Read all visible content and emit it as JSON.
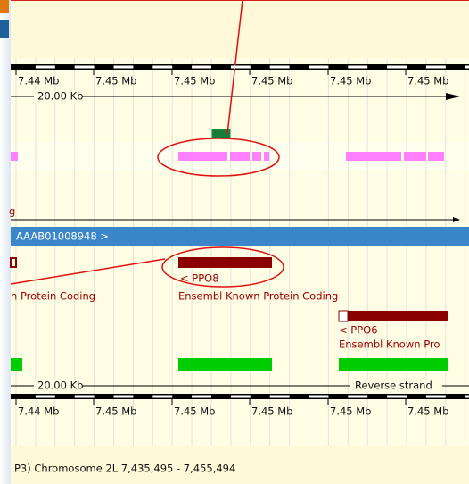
{
  "top_ruler": {
    "labels": [
      "7.44 Mb",
      "7.45 Mb",
      "7.45 Mb",
      "7.45 Mb",
      "7.45 Mb",
      "7.45 Mb"
    ],
    "scale": "20.00 Kb"
  },
  "forward_tracks": {
    "cut_label": "g"
  },
  "contig": {
    "label": "AAAB01008948 >"
  },
  "genes": [
    {
      "name": "< PPO8",
      "source": "Ensembl Known Protein Coding"
    },
    {
      "name": "< PPO6",
      "source": "Ensembl Known Pro"
    }
  ],
  "left_cut_label": "n Protein Coding",
  "bottom_ruler": {
    "scale": "20.00 Kb",
    "strand": "Reverse strand",
    "labels": [
      "7.44 Mb",
      "7.45 Mb",
      "7.45 Mb",
      "7.45 Mb",
      "7.45 Mb",
      "7.45 Mb"
    ]
  },
  "footer": {
    "location": "P3) Chromosome 2L 7,435,495 - 7,455,494"
  }
}
